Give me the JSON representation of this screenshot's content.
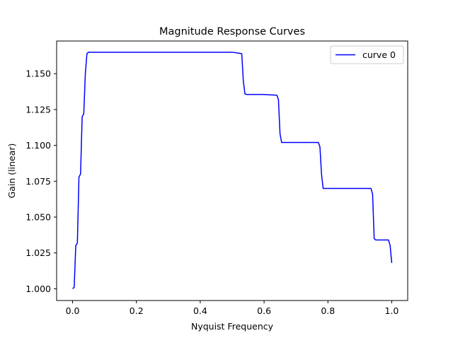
{
  "chart_data": {
    "type": "line",
    "title": "Magnitude Response Curves",
    "xlabel": "Nyquist Frequency",
    "ylabel": "Gain (linear)",
    "xlim": [
      -0.05,
      1.05
    ],
    "ylim": [
      0.9918,
      1.1728
    ],
    "xticks": [
      0.0,
      0.2,
      0.4,
      0.6,
      0.8,
      1.0
    ],
    "xtick_labels": [
      "0.0",
      "0.2",
      "0.4",
      "0.6",
      "0.8",
      "1.0"
    ],
    "yticks": [
      1.0,
      1.025,
      1.05,
      1.075,
      1.1,
      1.125,
      1.15
    ],
    "ytick_labels": [
      "1.000",
      "1.025",
      "1.050",
      "1.075",
      "1.100",
      "1.125",
      "1.150"
    ],
    "grid": false,
    "legend": {
      "position": "top-right"
    },
    "series": [
      {
        "name": "curve 0",
        "color": "#0000ff",
        "x": [
          0.0,
          0.005,
          0.01,
          0.015,
          0.02,
          0.025,
          0.03,
          0.035,
          0.04,
          0.045,
          0.05,
          0.1,
          0.15,
          0.2,
          0.25,
          0.3,
          0.35,
          0.4,
          0.45,
          0.5,
          0.53,
          0.535,
          0.54,
          0.545,
          0.6,
          0.64,
          0.645,
          0.65,
          0.655,
          0.7,
          0.77,
          0.775,
          0.78,
          0.785,
          0.8,
          0.85,
          0.9,
          0.935,
          0.94,
          0.945,
          0.95,
          0.97,
          0.99,
          0.995,
          1.0
        ],
        "y": [
          1.0,
          1.001,
          1.03,
          1.032,
          1.078,
          1.08,
          1.12,
          1.122,
          1.15,
          1.164,
          1.165,
          1.165,
          1.165,
          1.165,
          1.165,
          1.165,
          1.165,
          1.165,
          1.165,
          1.165,
          1.164,
          1.145,
          1.136,
          1.1355,
          1.1355,
          1.135,
          1.132,
          1.108,
          1.102,
          1.102,
          1.102,
          1.099,
          1.08,
          1.07,
          1.07,
          1.07,
          1.07,
          1.07,
          1.066,
          1.035,
          1.034,
          1.034,
          1.034,
          1.03,
          1.018
        ]
      }
    ]
  }
}
